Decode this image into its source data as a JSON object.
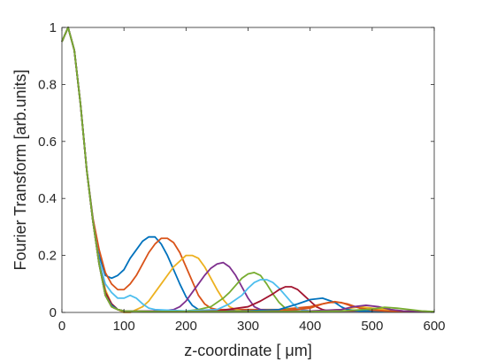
{
  "chart_data": {
    "type": "line",
    "xlabel": "z-coordinate [ μm]",
    "ylabel": "Fourier Transform [arb.units]",
    "xlim": [
      0,
      600
    ],
    "ylim": [
      0,
      1
    ],
    "xticks": [
      0,
      100,
      200,
      300,
      400,
      500,
      600
    ],
    "yticks": [
      0,
      0.2,
      0.4,
      0.6,
      0.8,
      1
    ],
    "xtick_labels": [
      "0",
      "100",
      "200",
      "300",
      "400",
      "500",
      "600"
    ],
    "ytick_labels": [
      "0",
      "0.2",
      "0.4",
      "0.6",
      "0.8",
      "1"
    ],
    "grid": false,
    "legend": "none",
    "series": [
      {
        "color": "#0072BD",
        "x": [
          0,
          10,
          20,
          30,
          40,
          50,
          60,
          70,
          80,
          90,
          100,
          110,
          120,
          130,
          140,
          150,
          160,
          170,
          180,
          190,
          200,
          210,
          220,
          230,
          240,
          250,
          270,
          300,
          350,
          400,
          450,
          500,
          550,
          600
        ],
        "y": [
          0.95,
          1.0,
          0.92,
          0.73,
          0.5,
          0.33,
          0.2,
          0.13,
          0.12,
          0.13,
          0.15,
          0.19,
          0.22,
          0.25,
          0.265,
          0.265,
          0.24,
          0.2,
          0.15,
          0.1,
          0.055,
          0.025,
          0.01,
          0.005,
          0.005,
          0.005,
          0.005,
          0.005,
          0.005,
          0.005,
          0.005,
          0.005,
          0.005,
          0.003
        ]
      },
      {
        "color": "#D95319",
        "x": [
          0,
          10,
          20,
          30,
          40,
          50,
          60,
          70,
          80,
          90,
          100,
          110,
          120,
          130,
          140,
          150,
          160,
          170,
          180,
          190,
          200,
          210,
          220,
          230,
          240,
          250,
          270,
          300,
          350,
          400,
          430,
          450,
          470,
          500,
          550,
          600
        ],
        "y": [
          0.95,
          1.0,
          0.92,
          0.73,
          0.5,
          0.33,
          0.22,
          0.14,
          0.1,
          0.08,
          0.08,
          0.1,
          0.13,
          0.17,
          0.21,
          0.24,
          0.26,
          0.26,
          0.245,
          0.21,
          0.16,
          0.11,
          0.06,
          0.03,
          0.015,
          0.01,
          0.01,
          0.01,
          0.01,
          0.02,
          0.035,
          0.035,
          0.02,
          0.01,
          0.005,
          0.003
        ]
      },
      {
        "color": "#EDB120",
        "x": [
          0,
          10,
          20,
          30,
          40,
          50,
          60,
          70,
          80,
          90,
          100,
          110,
          120,
          130,
          140,
          150,
          160,
          170,
          180,
          190,
          200,
          210,
          220,
          230,
          240,
          250,
          260,
          270,
          280,
          290,
          300,
          350,
          400,
          450,
          480,
          500,
          550,
          600
        ],
        "y": [
          0.95,
          1.0,
          0.92,
          0.73,
          0.5,
          0.32,
          0.18,
          0.08,
          0.03,
          0.01,
          0.0,
          0.0,
          0.01,
          0.02,
          0.04,
          0.07,
          0.1,
          0.13,
          0.16,
          0.18,
          0.2,
          0.2,
          0.19,
          0.16,
          0.12,
          0.08,
          0.045,
          0.02,
          0.01,
          0.005,
          0.003,
          0.003,
          0.003,
          0.01,
          0.02,
          0.015,
          0.005,
          0.003
        ]
      },
      {
        "color": "#7E2F8E",
        "x": [
          0,
          10,
          20,
          30,
          40,
          50,
          60,
          70,
          80,
          90,
          100,
          120,
          140,
          160,
          180,
          190,
          200,
          210,
          220,
          230,
          240,
          250,
          260,
          270,
          280,
          290,
          300,
          310,
          320,
          350,
          400,
          450,
          500,
          550,
          600
        ],
        "y": [
          0.95,
          1.0,
          0.92,
          0.73,
          0.5,
          0.32,
          0.18,
          0.07,
          0.03,
          0.01,
          0.005,
          0.005,
          0.005,
          0.005,
          0.01,
          0.02,
          0.04,
          0.07,
          0.1,
          0.13,
          0.155,
          0.17,
          0.175,
          0.16,
          0.13,
          0.09,
          0.05,
          0.02,
          0.01,
          0.005,
          0.005,
          0.005,
          0.005,
          0.003,
          0.003
        ]
      },
      {
        "color": "#77AC30",
        "x": [
          0,
          10,
          20,
          30,
          40,
          50,
          60,
          70,
          80,
          90,
          100,
          150,
          200,
          220,
          240,
          260,
          270,
          280,
          290,
          300,
          310,
          320,
          330,
          340,
          350,
          360,
          370,
          380,
          400,
          450,
          500,
          550,
          600
        ],
        "y": [
          0.95,
          1.0,
          0.92,
          0.73,
          0.5,
          0.32,
          0.17,
          0.07,
          0.03,
          0.01,
          0.005,
          0.003,
          0.005,
          0.01,
          0.02,
          0.05,
          0.07,
          0.095,
          0.12,
          0.135,
          0.14,
          0.13,
          0.1,
          0.065,
          0.035,
          0.015,
          0.008,
          0.005,
          0.005,
          0.005,
          0.005,
          0.003,
          0.003
        ]
      },
      {
        "color": "#4DBEEE",
        "x": [
          0,
          10,
          20,
          30,
          40,
          50,
          60,
          70,
          80,
          90,
          100,
          110,
          120,
          130,
          140,
          150,
          200,
          250,
          270,
          290,
          300,
          310,
          320,
          330,
          340,
          350,
          360,
          370,
          380,
          390,
          400,
          450,
          500,
          550,
          600
        ],
        "y": [
          0.95,
          1.0,
          0.92,
          0.73,
          0.5,
          0.32,
          0.18,
          0.1,
          0.07,
          0.05,
          0.05,
          0.06,
          0.05,
          0.03,
          0.015,
          0.01,
          0.005,
          0.01,
          0.03,
          0.06,
          0.085,
          0.105,
          0.115,
          0.115,
          0.105,
          0.085,
          0.06,
          0.035,
          0.015,
          0.008,
          0.005,
          0.005,
          0.003,
          0.003,
          0.003
        ]
      },
      {
        "color": "#A2142F",
        "x": [
          0,
          10,
          20,
          30,
          40,
          50,
          60,
          70,
          80,
          90,
          100,
          150,
          200,
          250,
          300,
          320,
          340,
          350,
          360,
          370,
          380,
          390,
          400,
          410,
          420,
          430,
          450,
          500,
          550,
          600
        ],
        "y": [
          0.95,
          1.0,
          0.92,
          0.73,
          0.5,
          0.32,
          0.17,
          0.07,
          0.03,
          0.01,
          0.005,
          0.003,
          0.003,
          0.005,
          0.02,
          0.04,
          0.065,
          0.08,
          0.09,
          0.09,
          0.08,
          0.06,
          0.04,
          0.02,
          0.01,
          0.005,
          0.005,
          0.005,
          0.003,
          0.003
        ]
      },
      {
        "color": "#0072BD",
        "x": [
          0,
          10,
          20,
          30,
          40,
          50,
          60,
          70,
          80,
          90,
          100,
          150,
          200,
          250,
          300,
          350,
          380,
          400,
          420,
          440,
          450,
          460,
          480,
          500,
          550,
          600
        ],
        "y": [
          0.95,
          1.0,
          0.92,
          0.73,
          0.5,
          0.32,
          0.17,
          0.06,
          0.025,
          0.01,
          0.005,
          0.003,
          0.003,
          0.003,
          0.005,
          0.01,
          0.03,
          0.045,
          0.05,
          0.035,
          0.02,
          0.01,
          0.005,
          0.005,
          0.003,
          0.003
        ]
      },
      {
        "color": "#D95319",
        "x": [
          0,
          10,
          20,
          30,
          40,
          50,
          60,
          70,
          80,
          90,
          100,
          150,
          200,
          250,
          300,
          350,
          400,
          420,
          440,
          460,
          480,
          500,
          520,
          550,
          600
        ],
        "y": [
          0.95,
          1.0,
          0.92,
          0.73,
          0.5,
          0.32,
          0.17,
          0.06,
          0.02,
          0.01,
          0.005,
          0.003,
          0.003,
          0.003,
          0.003,
          0.005,
          0.015,
          0.03,
          0.038,
          0.03,
          0.015,
          0.008,
          0.005,
          0.003,
          0.003
        ]
      },
      {
        "color": "#7E2F8E",
        "x": [
          0,
          10,
          20,
          30,
          40,
          50,
          60,
          70,
          80,
          90,
          100,
          150,
          200,
          250,
          300,
          350,
          400,
          450,
          470,
          490,
          510,
          530,
          550,
          600
        ],
        "y": [
          0.95,
          1.0,
          0.92,
          0.73,
          0.5,
          0.32,
          0.17,
          0.06,
          0.02,
          0.01,
          0.005,
          0.003,
          0.003,
          0.003,
          0.003,
          0.003,
          0.005,
          0.01,
          0.02,
          0.025,
          0.02,
          0.01,
          0.005,
          0.003
        ]
      },
      {
        "color": "#77AC30",
        "x": [
          0,
          10,
          20,
          30,
          40,
          50,
          60,
          70,
          80,
          90,
          100,
          150,
          200,
          250,
          300,
          350,
          400,
          450,
          500,
          520,
          540,
          560,
          580,
          600
        ],
        "y": [
          0.95,
          1.0,
          0.92,
          0.73,
          0.5,
          0.32,
          0.17,
          0.06,
          0.02,
          0.01,
          0.005,
          0.003,
          0.003,
          0.003,
          0.003,
          0.003,
          0.003,
          0.005,
          0.012,
          0.018,
          0.015,
          0.01,
          0.005,
          0.003
        ]
      }
    ]
  }
}
